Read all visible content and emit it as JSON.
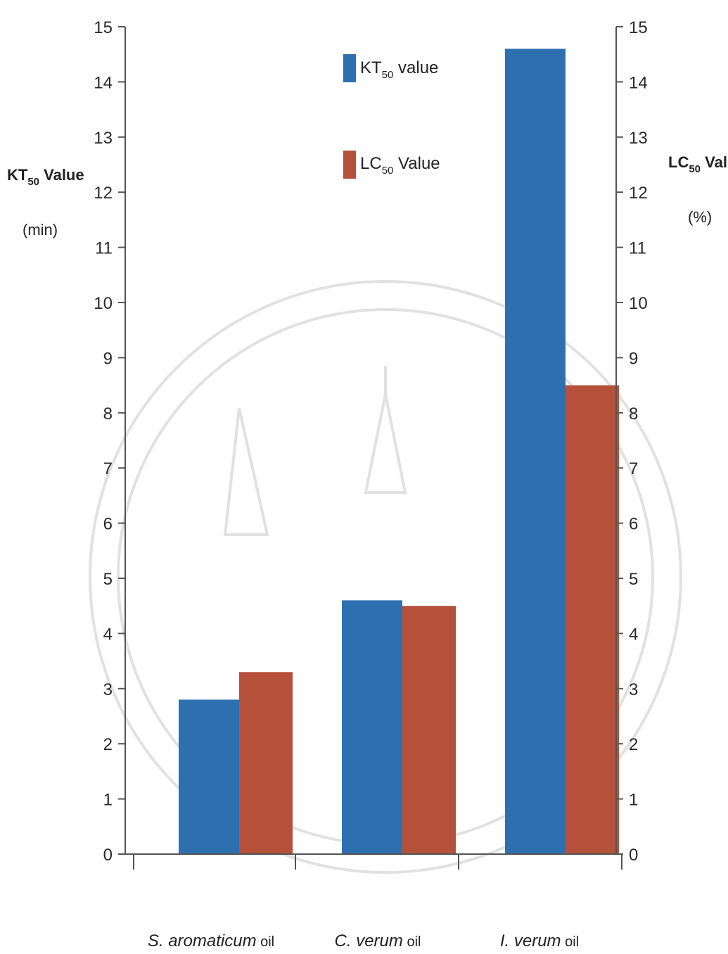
{
  "chart_data": {
    "type": "bar",
    "categories": [
      {
        "italic": "S. aromaticum",
        "suffix": " oil"
      },
      {
        "italic": "C. verum",
        "suffix": " oil"
      },
      {
        "italic": "I. verum",
        "suffix": " oil"
      }
    ],
    "series": [
      {
        "name_main": "KT",
        "name_sub": "50",
        "name_rest": "  value",
        "axis": "left",
        "values": [
          2.8,
          4.6,
          14.6
        ]
      },
      {
        "name_main": "LC",
        "name_sub": "50",
        "name_rest": "  Value",
        "axis": "right",
        "values": [
          3.3,
          4.5,
          8.5
        ]
      }
    ],
    "y_left": {
      "title_main": "KT",
      "title_sub": "50",
      "title_rest": " Value",
      "unit": "(min)",
      "ylim": [
        0,
        15
      ],
      "ticks": [
        0,
        1,
        2,
        3,
        4,
        5,
        6,
        7,
        8,
        9,
        10,
        11,
        12,
        13,
        14,
        15
      ]
    },
    "y_right": {
      "title_main": "LC",
      "title_sub": "50",
      "title_rest": " Value",
      "unit": "(%)",
      "ylim": [
        0,
        15
      ],
      "ticks": [
        0,
        1,
        2,
        3,
        4,
        5,
        6,
        7,
        8,
        9,
        10,
        11,
        12,
        13,
        14,
        15
      ]
    },
    "legend_position": "top-center",
    "grid": false
  },
  "colors": {
    "kt": "#2e6fb0",
    "lc": "#b5503a",
    "axis": "#555555"
  },
  "watermark": {
    "present": true,
    "icon": "royal-seal-watermark"
  }
}
